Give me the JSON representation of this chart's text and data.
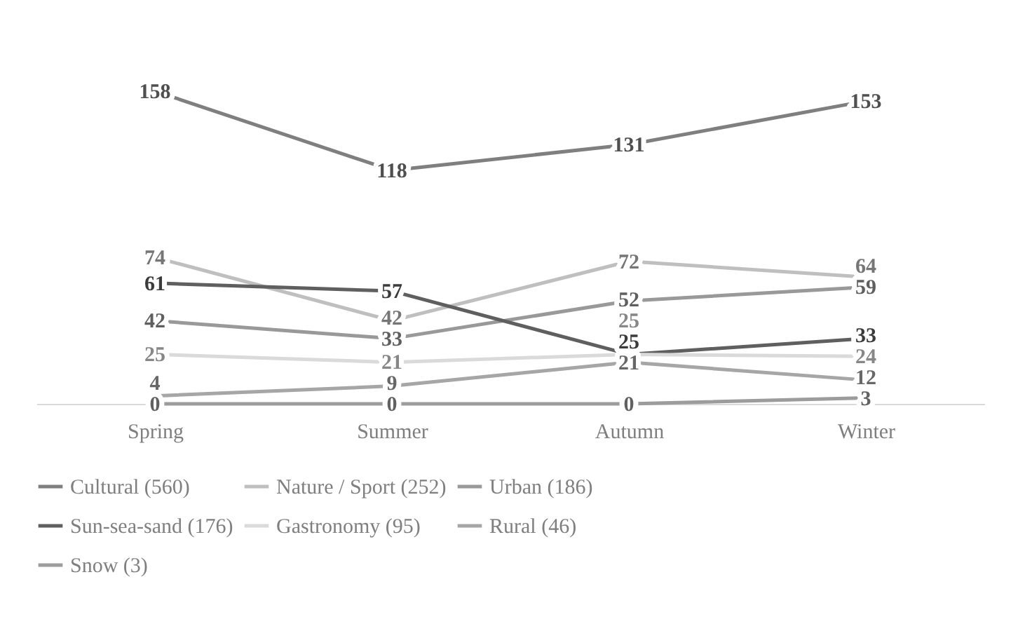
{
  "chart_data": {
    "type": "line",
    "categories": [
      "Spring",
      "Summer",
      "Autumn",
      "Winter"
    ],
    "data_labels": true,
    "legend": "bottom",
    "grid": false,
    "marker": "none",
    "line_style": "solid",
    "tick_labels": "x",
    "series": [
      {
        "name": "Cultural (560)",
        "color": "#7f7f7f",
        "values": [
          158,
          118,
          131,
          153
        ]
      },
      {
        "name": "Nature / Sport (252)",
        "color": "#bfbfbf",
        "values": [
          74,
          42,
          72,
          64
        ]
      },
      {
        "name": "Urban (186)",
        "color": "#999999",
        "values": [
          42,
          33,
          52,
          59
        ]
      },
      {
        "name": "Sun-sea-sand (176)",
        "color": "#5f5f5f",
        "values": [
          61,
          57,
          25,
          33
        ]
      },
      {
        "name": "Gastronomy (95)",
        "color": "#dadada",
        "values": [
          25,
          21,
          25,
          24
        ]
      },
      {
        "name": "Rural (46)",
        "color": "#a6a6a6",
        "values": [
          4,
          9,
          21,
          12
        ]
      },
      {
        "name": "Snow (3)",
        "color": "#9c9c9c",
        "values": [
          0,
          0,
          0,
          3
        ]
      }
    ]
  }
}
